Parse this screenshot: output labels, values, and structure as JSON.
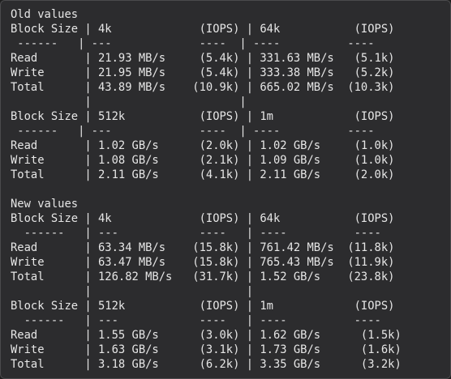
{
  "sections": [
    {
      "title": "Old values",
      "lines": [
        "Block Size | 4k             (IOPS) | 64k           (IOPS)",
        " ------   | ---             ----  | ----          ----",
        "Read       | 21.93 MB/s     (5.4k) | 331.63 MB/s   (5.1k)",
        "Write      | 21.95 MB/s     (5.4k) | 333.38 MB/s   (5.2k)",
        "Total      | 43.89 MB/s    (10.9k) | 665.02 MB/s  (10.3k)",
        "           |                      |",
        "Block Size | 512k           (IOPS) | 1m            (IOPS)",
        " ------   | ---             ----  | ----          ----",
        "Read       | 1.02 GB/s      (2.0k) | 1.02 GB/s     (1.0k)",
        "Write      | 1.08 GB/s      (2.1k) | 1.09 GB/s     (1.0k)",
        "Total      | 2.11 GB/s      (4.1k) | 2.11 GB/s     (2.0k)"
      ]
    },
    {
      "title": "New values",
      "lines": [
        "Block Size | 4k             (IOPS) | 64k           (IOPS)",
        "  ------   | ---            ----   | ----          ----",
        "Read       | 63.34 MB/s    (15.8k) | 761.42 MB/s  (11.8k)",
        "Write      | 63.47 MB/s    (15.8k) | 765.43 MB/s  (11.9k)",
        "Total      | 126.82 MB/s   (31.7k) | 1.52 GB/s    (23.8k)",
        "           |                       |",
        "Block Size | 512k           (IOPS) | 1m            (IOPS)",
        "  ------   | ---            ----   | ----          ----",
        "Read       | 1.55 GB/s      (3.0k) | 1.62 GB/s      (1.5k)",
        "Write      | 1.63 GB/s      (3.1k) | 1.73 GB/s      (1.6k)",
        "Total      | 3.18 GB/s      (6.2k) | 3.35 GB/s      (3.2k)"
      ]
    }
  ]
}
